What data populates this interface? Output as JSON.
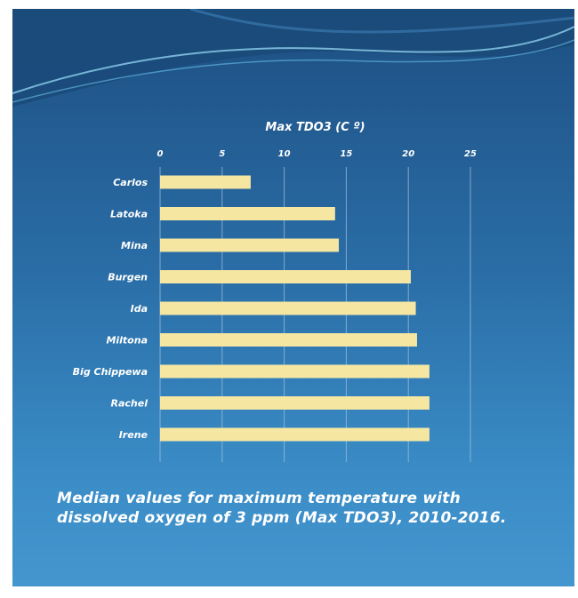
{
  "caption": "Median values for maximum temperature with dissolved oxygen of 3 ppm (Max TDO3), 2010-2016.",
  "colors": {
    "bar": "#f5e6a2",
    "gridline": "#9cc0dd",
    "background_top": "#1d4f82",
    "background_bottom": "#4596cf"
  },
  "chart_data": {
    "type": "bar",
    "orientation": "horizontal",
    "title": "Max TDO3 (C º)",
    "categories": [
      "Carlos",
      "Latoka",
      "Mina",
      "Burgen",
      "Ida",
      "Miltona",
      "Big Chippewa",
      "Rachel",
      "Irene"
    ],
    "values": [
      7.3,
      14.1,
      14.4,
      20.2,
      20.6,
      20.7,
      21.7,
      21.7,
      21.7
    ],
    "xlim": [
      0,
      25
    ],
    "xticks": [
      0,
      5,
      10,
      15,
      20,
      25
    ],
    "x_axis_position": "top",
    "grid": true,
    "legend": "none"
  }
}
